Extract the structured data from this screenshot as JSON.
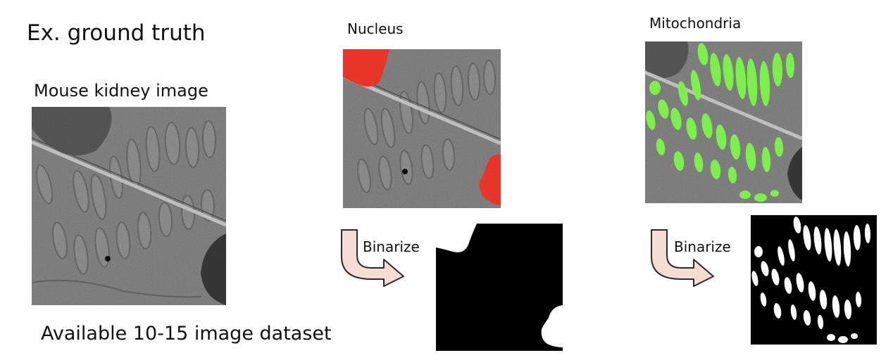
{
  "slide": {
    "title": "Ex. ground truth",
    "subtitle": "Mouse kidney image",
    "footer": "Available 10-15 image dataset"
  },
  "nucleus": {
    "label": "Nucleus",
    "arrow_label": "Binarize",
    "overlay_color": "#e8352a"
  },
  "mitochondria": {
    "label": "Mitochondria",
    "arrow_label": "Binarize",
    "overlay_color": "#7cf04a"
  },
  "colors": {
    "arrow_fill": "#f6ddd3",
    "arrow_stroke": "#2a2a2a",
    "em_base": "#8a8a8a"
  }
}
